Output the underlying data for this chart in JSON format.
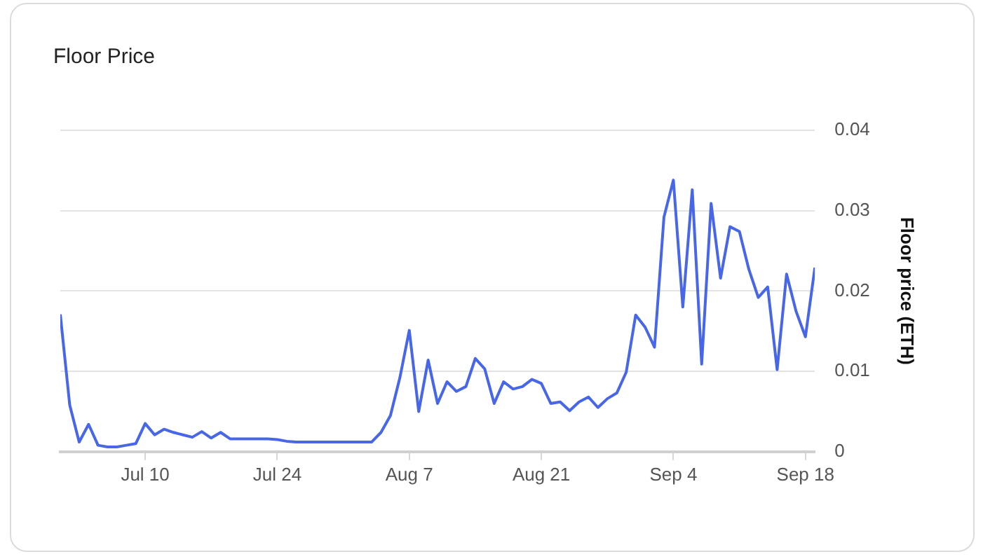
{
  "chart_data": {
    "type": "line",
    "title": "Floor Price",
    "ylabel": "Floor price (ETH)",
    "x": [
      "--07-01",
      "--07-02",
      "--07-03",
      "--07-04",
      "--07-05",
      "--07-06",
      "--07-07",
      "--07-08",
      "--07-09",
      "--07-10",
      "--07-11",
      "--07-12",
      "--07-13",
      "--07-14",
      "--07-15",
      "--07-16",
      "--07-17",
      "--07-18",
      "--07-19",
      "--07-20",
      "--07-21",
      "--07-22",
      "--07-23",
      "--07-24",
      "--07-25",
      "--07-26",
      "--07-27",
      "--07-28",
      "--07-29",
      "--07-30",
      "--07-31",
      "--08-01",
      "--08-02",
      "--08-03",
      "--08-04",
      "--08-05",
      "--08-06",
      "--08-07",
      "--08-08",
      "--08-09",
      "--08-10",
      "--08-11",
      "--08-12",
      "--08-13",
      "--08-14",
      "--08-15",
      "--08-16",
      "--08-17",
      "--08-18",
      "--08-19",
      "--08-20",
      "--08-21",
      "--08-22",
      "--08-23",
      "--08-24",
      "--08-25",
      "--08-26",
      "--08-27",
      "--08-28",
      "--08-29",
      "--08-30",
      "--08-31",
      "--09-01",
      "--09-02",
      "--09-03",
      "--09-04",
      "--09-05",
      "--09-06",
      "--09-07",
      "--09-08",
      "--09-09",
      "--09-10",
      "--09-11",
      "--09-12",
      "--09-13",
      "--09-14",
      "--09-15",
      "--09-16",
      "--09-17",
      "--09-18",
      "--09-19"
    ],
    "series": [
      {
        "color": "#4866e8",
        "values": [
          0.0171,
          0.0058,
          0.0012,
          0.0034,
          0.0008,
          0.0006,
          0.0006,
          0.0008,
          0.001,
          0.0035,
          0.0021,
          0.0028,
          0.0024,
          0.0021,
          0.0018,
          0.0025,
          0.0017,
          0.0024,
          0.0016,
          0.0016,
          0.0016,
          0.0016,
          0.0016,
          0.0015,
          0.0013,
          0.0012,
          0.0012,
          0.0012,
          0.0012,
          0.0012,
          0.0012,
          0.0012,
          0.0012,
          0.0012,
          0.0024,
          0.0045,
          0.0092,
          0.0151,
          0.005,
          0.0114,
          0.006,
          0.0087,
          0.0075,
          0.0081,
          0.0116,
          0.0103,
          0.006,
          0.0087,
          0.0078,
          0.0081,
          0.009,
          0.0085,
          0.006,
          0.0062,
          0.0051,
          0.0062,
          0.0068,
          0.0055,
          0.0066,
          0.0073,
          0.0099,
          0.017,
          0.0155,
          0.013,
          0.0292,
          0.0338,
          0.018,
          0.0326,
          0.0109,
          0.0309,
          0.0216,
          0.028,
          0.0274,
          0.0227,
          0.0192,
          0.0205,
          0.0102,
          0.0221,
          0.0175,
          0.0143,
          0.0229
        ]
      }
    ],
    "xlim": [
      "--07-01",
      "--09-19"
    ],
    "xticks": [
      {
        "value": "--07-10",
        "label": "Jul 10"
      },
      {
        "value": "--07-24",
        "label": "Jul 24"
      },
      {
        "value": "--08-07",
        "label": "Aug 7"
      },
      {
        "value": "--08-21",
        "label": "Aug 21"
      },
      {
        "value": "--09-04",
        "label": "Sep 4"
      },
      {
        "value": "--09-18",
        "label": "Sep 18"
      }
    ],
    "ylim": [
      0,
      0.04
    ],
    "yticks": [
      0,
      0.01,
      0.02,
      0.03,
      0.04
    ],
    "grid": "y",
    "marker": "none",
    "line_style": "solid"
  }
}
